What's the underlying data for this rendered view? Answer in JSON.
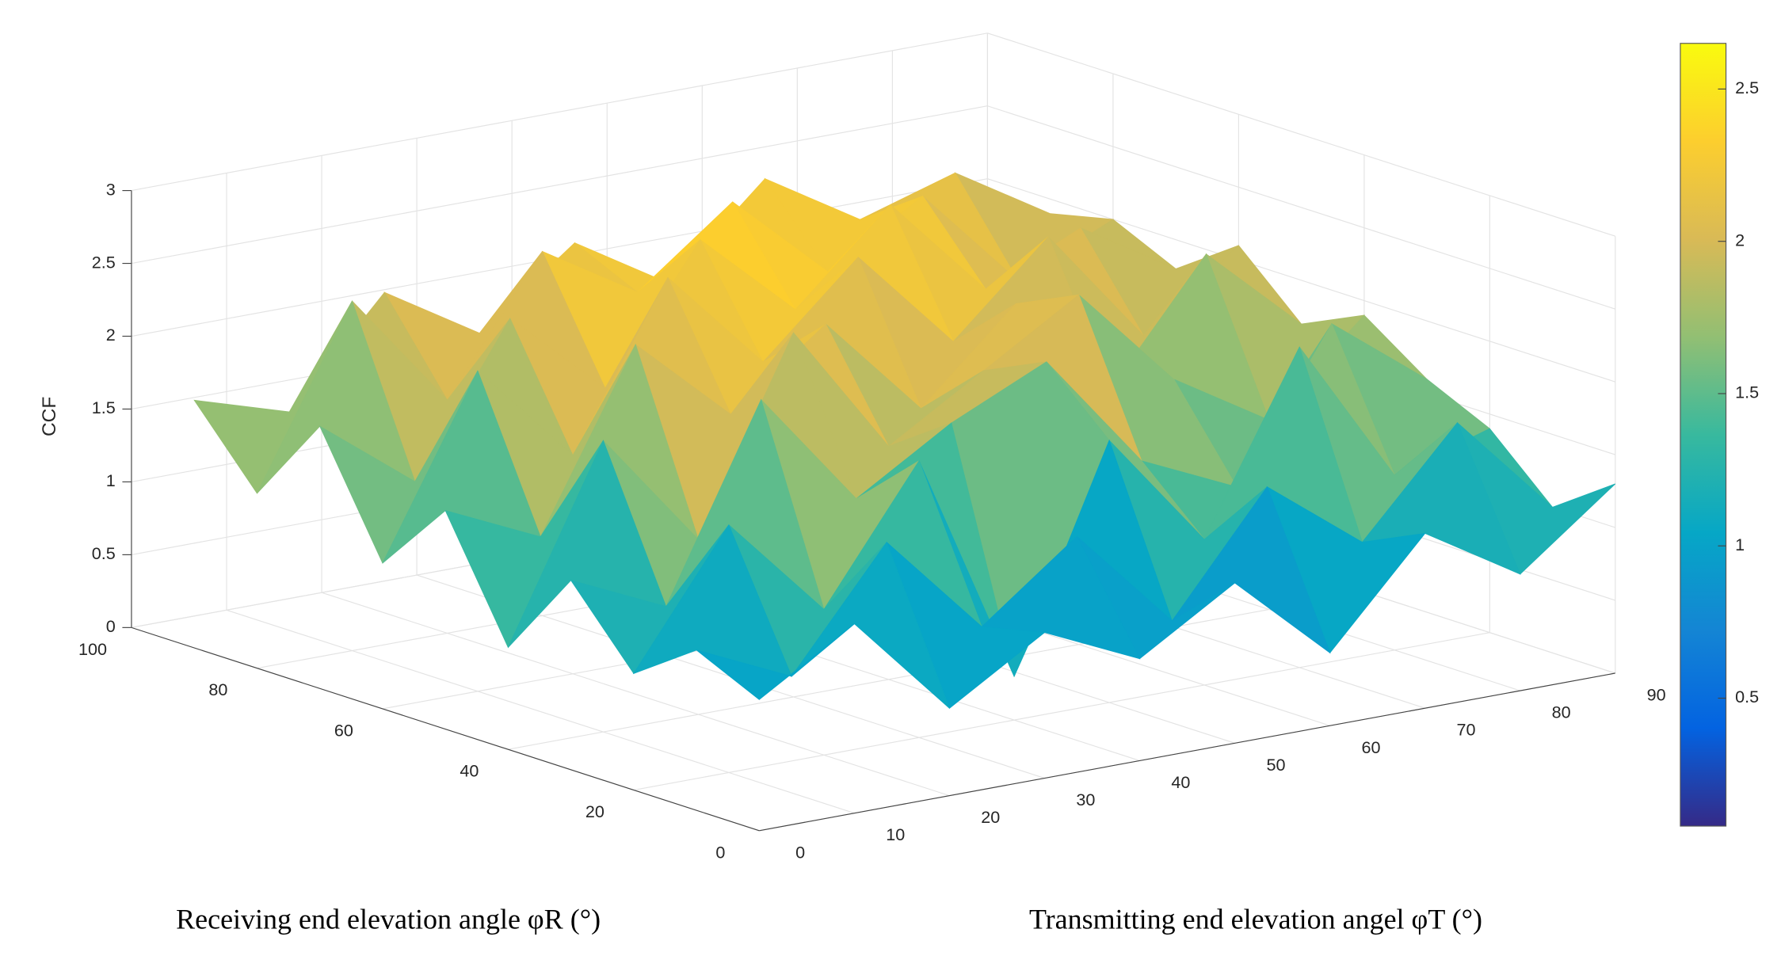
{
  "chart_data": {
    "type": "surface",
    "zlabel": "CCF",
    "xlabel": "Transmitting end elevation angel φT (°)",
    "ylabel": "Receiving end elevation angle φR (°)",
    "x": [
      0,
      10,
      20,
      30,
      40,
      50,
      60,
      70,
      80,
      90
    ],
    "y": [
      0,
      10,
      20,
      30,
      40,
      50,
      60,
      70,
      80,
      90
    ],
    "z": [
      [
        0.9,
        1.3,
        0.6,
        1.0,
        0.7,
        1.1,
        0.5,
        1.2,
        0.8,
        1.3
      ],
      [
        1.1,
        0.8,
        1.6,
        0.9,
        1.4,
        0.7,
        1.5,
        1.0,
        1.7,
        1.0
      ],
      [
        0.8,
        1.7,
        1.0,
        1.9,
        0.3,
        1.8,
        1.0,
        2.2,
        1.2,
        1.4
      ],
      [
        1.3,
        1.0,
        2.3,
        1.5,
        1.9,
        2.2,
        1.4,
        1.1,
        2.1,
        1.6
      ],
      [
        0.7,
        2.0,
        1.2,
        2.5,
        1.6,
        2.0,
        2.4,
        1.7,
        1.3,
        1.9
      ],
      [
        1.5,
        1.2,
        2.4,
        1.8,
        2.3,
        1.6,
        2.2,
        1.5,
        2.3,
        1.7
      ],
      [
        1.0,
        2.2,
        1.5,
        2.6,
        1.9,
        2.5,
        1.8,
        2.4,
        1.6,
        2.1
      ],
      [
        1.8,
        1.3,
        2.3,
        1.7,
        2.6,
        2.0,
        2.6,
        1.9,
        2.2,
        1.8
      ],
      [
        1.2,
        2.4,
        1.6,
        2.5,
        2.1,
        2.6,
        2.0,
        2.4,
        1.7,
        2.0
      ],
      [
        1.7,
        1.5,
        2.2,
        1.8,
        2.3,
        1.9,
        2.5,
        2.1,
        2.3,
        1.9
      ]
    ],
    "xlim": [
      0,
      90
    ],
    "xticks": [
      0,
      10,
      20,
      30,
      40,
      50,
      60,
      70,
      80,
      90
    ],
    "ylim": [
      0,
      100
    ],
    "yticks": [
      0,
      20,
      40,
      60,
      80,
      100
    ],
    "zlim": [
      0,
      3
    ],
    "zticks": [
      0,
      0.5,
      1,
      1.5,
      2,
      2.5,
      3
    ],
    "grid": true,
    "colormap": [
      "#352a87",
      "#0363e1",
      "#1485d4",
      "#06a7c6",
      "#38b99e",
      "#92bf73",
      "#d9ba56",
      "#fcce2e",
      "#f9fb0e"
    ],
    "clim": [
      0.08,
      2.65
    ],
    "cticks": [
      0.5,
      1,
      1.5,
      2,
      2.5
    ]
  }
}
